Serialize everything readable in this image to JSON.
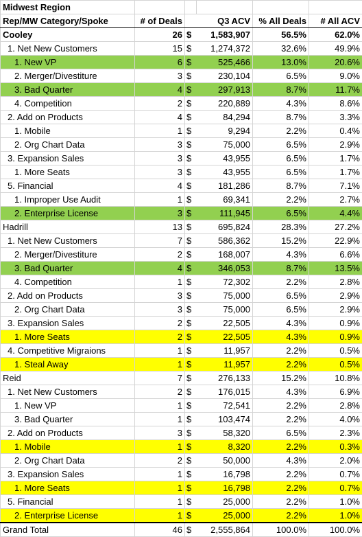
{
  "colors": {
    "green": "#92d050",
    "yellow": "#ffff00"
  },
  "title": "Midwest Region",
  "headers": [
    "Rep/MW Category/Spoke",
    "# of Deals",
    "Q3 ACV",
    "% All Deals",
    "# All ACV"
  ],
  "rows": [
    {
      "label": "Cooley",
      "deals": "26",
      "cur": "$",
      "acv": "1,583,907",
      "pct_deals": "56.5%",
      "pct_acv": "62.0%",
      "level": 0,
      "bold": true,
      "highlight": ""
    },
    {
      "label": "1. Net New Customers",
      "deals": "15",
      "cur": "$",
      "acv": "1,274,372",
      "pct_deals": "32.6%",
      "pct_acv": "49.9%",
      "level": 1,
      "bold": false,
      "highlight": ""
    },
    {
      "label": "1. New VP",
      "deals": "6",
      "cur": "$",
      "acv": "525,466",
      "pct_deals": "13.0%",
      "pct_acv": "20.6%",
      "level": 2,
      "bold": false,
      "highlight": "green"
    },
    {
      "label": "2. Merger/Divestiture",
      "deals": "3",
      "cur": "$",
      "acv": "230,104",
      "pct_deals": "6.5%",
      "pct_acv": "9.0%",
      "level": 2,
      "bold": false,
      "highlight": ""
    },
    {
      "label": "3. Bad Quarter",
      "deals": "4",
      "cur": "$",
      "acv": "297,913",
      "pct_deals": "8.7%",
      "pct_acv": "11.7%",
      "level": 2,
      "bold": false,
      "highlight": "green"
    },
    {
      "label": "4. Competition",
      "deals": "2",
      "cur": "$",
      "acv": "220,889",
      "pct_deals": "4.3%",
      "pct_acv": "8.6%",
      "level": 2,
      "bold": false,
      "highlight": ""
    },
    {
      "label": "2. Add on Products",
      "deals": "4",
      "cur": "$",
      "acv": "84,294",
      "pct_deals": "8.7%",
      "pct_acv": "3.3%",
      "level": 1,
      "bold": false,
      "highlight": ""
    },
    {
      "label": "1. Mobile",
      "deals": "1",
      "cur": "$",
      "acv": "9,294",
      "pct_deals": "2.2%",
      "pct_acv": "0.4%",
      "level": 2,
      "bold": false,
      "highlight": ""
    },
    {
      "label": "2. Org Chart Data",
      "deals": "3",
      "cur": "$",
      "acv": "75,000",
      "pct_deals": "6.5%",
      "pct_acv": "2.9%",
      "level": 2,
      "bold": false,
      "highlight": ""
    },
    {
      "label": "3. Expansion Sales",
      "deals": "3",
      "cur": "$",
      "acv": "43,955",
      "pct_deals": "6.5%",
      "pct_acv": "1.7%",
      "level": 1,
      "bold": false,
      "highlight": ""
    },
    {
      "label": "1. More Seats",
      "deals": "3",
      "cur": "$",
      "acv": "43,955",
      "pct_deals": "6.5%",
      "pct_acv": "1.7%",
      "level": 2,
      "bold": false,
      "highlight": ""
    },
    {
      "label": "5. Financial",
      "deals": "4",
      "cur": "$",
      "acv": "181,286",
      "pct_deals": "8.7%",
      "pct_acv": "7.1%",
      "level": 1,
      "bold": false,
      "highlight": ""
    },
    {
      "label": "1. Improper Use Audit",
      "deals": "1",
      "cur": "$",
      "acv": "69,341",
      "pct_deals": "2.2%",
      "pct_acv": "2.7%",
      "level": 2,
      "bold": false,
      "highlight": ""
    },
    {
      "label": "2. Enterprise License",
      "deals": "3",
      "cur": "$",
      "acv": "111,945",
      "pct_deals": "6.5%",
      "pct_acv": "4.4%",
      "level": 2,
      "bold": false,
      "highlight": "green"
    },
    {
      "label": "Hadrill",
      "deals": "13",
      "cur": "$",
      "acv": "695,824",
      "pct_deals": "28.3%",
      "pct_acv": "27.2%",
      "level": 0,
      "bold": false,
      "highlight": ""
    },
    {
      "label": "1. Net New Customers",
      "deals": "7",
      "cur": "$",
      "acv": "586,362",
      "pct_deals": "15.2%",
      "pct_acv": "22.9%",
      "level": 1,
      "bold": false,
      "highlight": ""
    },
    {
      "label": "2. Merger/Divestiture",
      "deals": "2",
      "cur": "$",
      "acv": "168,007",
      "pct_deals": "4.3%",
      "pct_acv": "6.6%",
      "level": 2,
      "bold": false,
      "highlight": ""
    },
    {
      "label": "3. Bad Quarter",
      "deals": "4",
      "cur": "$",
      "acv": "346,053",
      "pct_deals": "8.7%",
      "pct_acv": "13.5%",
      "level": 2,
      "bold": false,
      "highlight": "green"
    },
    {
      "label": "4. Competition",
      "deals": "1",
      "cur": "$",
      "acv": "72,302",
      "pct_deals": "2.2%",
      "pct_acv": "2.8%",
      "level": 2,
      "bold": false,
      "highlight": ""
    },
    {
      "label": "2. Add on Products",
      "deals": "3",
      "cur": "$",
      "acv": "75,000",
      "pct_deals": "6.5%",
      "pct_acv": "2.9%",
      "level": 1,
      "bold": false,
      "highlight": ""
    },
    {
      "label": "2. Org Chart Data",
      "deals": "3",
      "cur": "$",
      "acv": "75,000",
      "pct_deals": "6.5%",
      "pct_acv": "2.9%",
      "level": 2,
      "bold": false,
      "highlight": ""
    },
    {
      "label": "3. Expansion Sales",
      "deals": "2",
      "cur": "$",
      "acv": "22,505",
      "pct_deals": "4.3%",
      "pct_acv": "0.9%",
      "level": 1,
      "bold": false,
      "highlight": ""
    },
    {
      "label": "1. More Seats",
      "deals": "2",
      "cur": "$",
      "acv": "22,505",
      "pct_deals": "4.3%",
      "pct_acv": "0.9%",
      "level": 2,
      "bold": false,
      "highlight": "yellow"
    },
    {
      "label": "4. Competitive Migraions",
      "deals": "1",
      "cur": "$",
      "acv": "11,957",
      "pct_deals": "2.2%",
      "pct_acv": "0.5%",
      "level": 1,
      "bold": false,
      "highlight": ""
    },
    {
      "label": "1. Steal Away",
      "deals": "1",
      "cur": "$",
      "acv": "11,957",
      "pct_deals": "2.2%",
      "pct_acv": "0.5%",
      "level": 2,
      "bold": false,
      "highlight": "yellow"
    },
    {
      "label": "Reid",
      "deals": "7",
      "cur": "$",
      "acv": "276,133",
      "pct_deals": "15.2%",
      "pct_acv": "10.8%",
      "level": 0,
      "bold": false,
      "highlight": ""
    },
    {
      "label": "1. Net New Customers",
      "deals": "2",
      "cur": "$",
      "acv": "176,015",
      "pct_deals": "4.3%",
      "pct_acv": "6.9%",
      "level": 1,
      "bold": false,
      "highlight": ""
    },
    {
      "label": "1. New VP",
      "deals": "1",
      "cur": "$",
      "acv": "72,541",
      "pct_deals": "2.2%",
      "pct_acv": "2.8%",
      "level": 2,
      "bold": false,
      "highlight": ""
    },
    {
      "label": "3. Bad Quarter",
      "deals": "1",
      "cur": "$",
      "acv": "103,474",
      "pct_deals": "2.2%",
      "pct_acv": "4.0%",
      "level": 2,
      "bold": false,
      "highlight": ""
    },
    {
      "label": "2. Add on Products",
      "deals": "3",
      "cur": "$",
      "acv": "58,320",
      "pct_deals": "6.5%",
      "pct_acv": "2.3%",
      "level": 1,
      "bold": false,
      "highlight": ""
    },
    {
      "label": "1. Mobile",
      "deals": "1",
      "cur": "$",
      "acv": "8,320",
      "pct_deals": "2.2%",
      "pct_acv": "0.3%",
      "level": 2,
      "bold": false,
      "highlight": "yellow"
    },
    {
      "label": "2. Org Chart Data",
      "deals": "2",
      "cur": "$",
      "acv": "50,000",
      "pct_deals": "4.3%",
      "pct_acv": "2.0%",
      "level": 2,
      "bold": false,
      "highlight": ""
    },
    {
      "label": "3. Expansion Sales",
      "deals": "1",
      "cur": "$",
      "acv": "16,798",
      "pct_deals": "2.2%",
      "pct_acv": "0.7%",
      "level": 1,
      "bold": false,
      "highlight": ""
    },
    {
      "label": "1. More Seats",
      "deals": "1",
      "cur": "$",
      "acv": "16,798",
      "pct_deals": "2.2%",
      "pct_acv": "0.7%",
      "level": 2,
      "bold": false,
      "highlight": "yellow"
    },
    {
      "label": "5. Financial",
      "deals": "1",
      "cur": "$",
      "acv": "25,000",
      "pct_deals": "2.2%",
      "pct_acv": "1.0%",
      "level": 1,
      "bold": false,
      "highlight": ""
    },
    {
      "label": "2. Enterprise License",
      "deals": "1",
      "cur": "$",
      "acv": "25,000",
      "pct_deals": "2.2%",
      "pct_acv": "1.0%",
      "level": 2,
      "bold": false,
      "highlight": "yellow"
    }
  ],
  "total": {
    "label": "Grand Total",
    "deals": "46",
    "cur": "$",
    "acv": "2,555,864",
    "pct_deals": "100.0%",
    "pct_acv": "100.0%"
  }
}
